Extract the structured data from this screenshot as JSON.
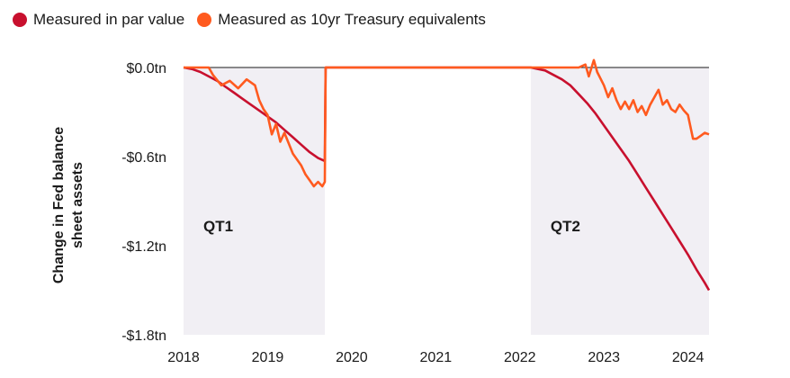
{
  "legend": [
    {
      "label": "Measured in par value",
      "color": "#c8102e"
    },
    {
      "label": "Measured as 10yr Treasury equivalents",
      "color": "#ff5a1f"
    }
  ],
  "chart_data": {
    "type": "line",
    "title": "",
    "ylabel_lines": [
      "Change in Fed balance",
      "sheet assets"
    ],
    "xlim": [
      2018.0,
      2024.25
    ],
    "ylim": [
      -1.8,
      0.0
    ],
    "x_ticks": [
      {
        "value": 2018,
        "label": "2018"
      },
      {
        "value": 2019,
        "label": "2019"
      },
      {
        "value": 2020,
        "label": "2020"
      },
      {
        "value": 2021,
        "label": "2021"
      },
      {
        "value": 2022,
        "label": "2022"
      },
      {
        "value": 2023,
        "label": "2023"
      },
      {
        "value": 2024,
        "label": "2024"
      }
    ],
    "y_ticks": [
      {
        "value": 0.0,
        "label": "$0.0tn"
      },
      {
        "value": -0.6,
        "label": "-$0.6tn"
      },
      {
        "value": -1.2,
        "label": "-$1.2tn"
      },
      {
        "value": -1.8,
        "label": "-$1.8tn"
      }
    ],
    "shaded_regions": [
      {
        "start": 2018.0,
        "end": 2019.68,
        "label": "QT1",
        "color": "#f1eff4"
      },
      {
        "start": 2022.13,
        "end": 2024.25,
        "label": "QT2",
        "color": "#f1eff4"
      }
    ],
    "series": [
      {
        "name": "Measured in par value",
        "color": "#c8102e",
        "points": [
          [
            2018.0,
            0.0
          ],
          [
            2018.1,
            -0.01
          ],
          [
            2018.2,
            -0.03
          ],
          [
            2018.3,
            -0.06
          ],
          [
            2018.4,
            -0.09
          ],
          [
            2018.5,
            -0.13
          ],
          [
            2018.6,
            -0.17
          ],
          [
            2018.7,
            -0.21
          ],
          [
            2018.8,
            -0.25
          ],
          [
            2018.9,
            -0.29
          ],
          [
            2019.0,
            -0.33
          ],
          [
            2019.1,
            -0.37
          ],
          [
            2019.2,
            -0.42
          ],
          [
            2019.3,
            -0.47
          ],
          [
            2019.4,
            -0.52
          ],
          [
            2019.5,
            -0.57
          ],
          [
            2019.6,
            -0.61
          ],
          [
            2019.68,
            -0.63
          ],
          [
            2019.69,
            0.0
          ],
          [
            2022.13,
            0.0
          ],
          [
            2022.3,
            -0.02
          ],
          [
            2022.5,
            -0.08
          ],
          [
            2022.6,
            -0.12
          ],
          [
            2022.7,
            -0.18
          ],
          [
            2022.8,
            -0.24
          ],
          [
            2022.9,
            -0.31
          ],
          [
            2023.0,
            -0.39
          ],
          [
            2023.1,
            -0.47
          ],
          [
            2023.2,
            -0.55
          ],
          [
            2023.3,
            -0.63
          ],
          [
            2023.4,
            -0.72
          ],
          [
            2023.5,
            -0.81
          ],
          [
            2023.6,
            -0.9
          ],
          [
            2023.7,
            -0.99
          ],
          [
            2023.8,
            -1.08
          ],
          [
            2023.9,
            -1.17
          ],
          [
            2024.0,
            -1.26
          ],
          [
            2024.1,
            -1.36
          ],
          [
            2024.2,
            -1.45
          ],
          [
            2024.25,
            -1.5
          ]
        ]
      },
      {
        "name": "Measured as 10yr Treasury equivalents",
        "color": "#ff5a1f",
        "points": [
          [
            2018.0,
            0.0
          ],
          [
            2018.15,
            0.0
          ],
          [
            2018.3,
            0.0
          ],
          [
            2018.35,
            -0.05
          ],
          [
            2018.45,
            -0.12
          ],
          [
            2018.55,
            -0.09
          ],
          [
            2018.65,
            -0.14
          ],
          [
            2018.75,
            -0.08
          ],
          [
            2018.85,
            -0.12
          ],
          [
            2018.9,
            -0.22
          ],
          [
            2018.95,
            -0.28
          ],
          [
            2019.0,
            -0.32
          ],
          [
            2019.05,
            -0.45
          ],
          [
            2019.1,
            -0.38
          ],
          [
            2019.15,
            -0.5
          ],
          [
            2019.2,
            -0.44
          ],
          [
            2019.3,
            -0.58
          ],
          [
            2019.4,
            -0.66
          ],
          [
            2019.45,
            -0.72
          ],
          [
            2019.5,
            -0.76
          ],
          [
            2019.55,
            -0.8
          ],
          [
            2019.6,
            -0.77
          ],
          [
            2019.65,
            -0.8
          ],
          [
            2019.68,
            -0.77
          ],
          [
            2019.69,
            0.0
          ],
          [
            2022.13,
            0.0
          ],
          [
            2022.5,
            0.0
          ],
          [
            2022.7,
            0.0
          ],
          [
            2022.78,
            0.02
          ],
          [
            2022.82,
            -0.06
          ],
          [
            2022.88,
            0.05
          ],
          [
            2022.92,
            -0.03
          ],
          [
            2023.0,
            -0.12
          ],
          [
            2023.05,
            -0.2
          ],
          [
            2023.1,
            -0.14
          ],
          [
            2023.15,
            -0.22
          ],
          [
            2023.2,
            -0.28
          ],
          [
            2023.25,
            -0.23
          ],
          [
            2023.3,
            -0.28
          ],
          [
            2023.35,
            -0.22
          ],
          [
            2023.4,
            -0.3
          ],
          [
            2023.45,
            -0.26
          ],
          [
            2023.5,
            -0.32
          ],
          [
            2023.55,
            -0.25
          ],
          [
            2023.6,
            -0.2
          ],
          [
            2023.65,
            -0.15
          ],
          [
            2023.7,
            -0.25
          ],
          [
            2023.75,
            -0.22
          ],
          [
            2023.8,
            -0.28
          ],
          [
            2023.85,
            -0.3
          ],
          [
            2023.9,
            -0.25
          ],
          [
            2023.95,
            -0.29
          ],
          [
            2024.0,
            -0.32
          ],
          [
            2024.03,
            -0.4
          ],
          [
            2024.06,
            -0.48
          ],
          [
            2024.1,
            -0.48
          ],
          [
            2024.15,
            -0.46
          ],
          [
            2024.2,
            -0.44
          ],
          [
            2024.25,
            -0.45
          ]
        ]
      }
    ]
  }
}
